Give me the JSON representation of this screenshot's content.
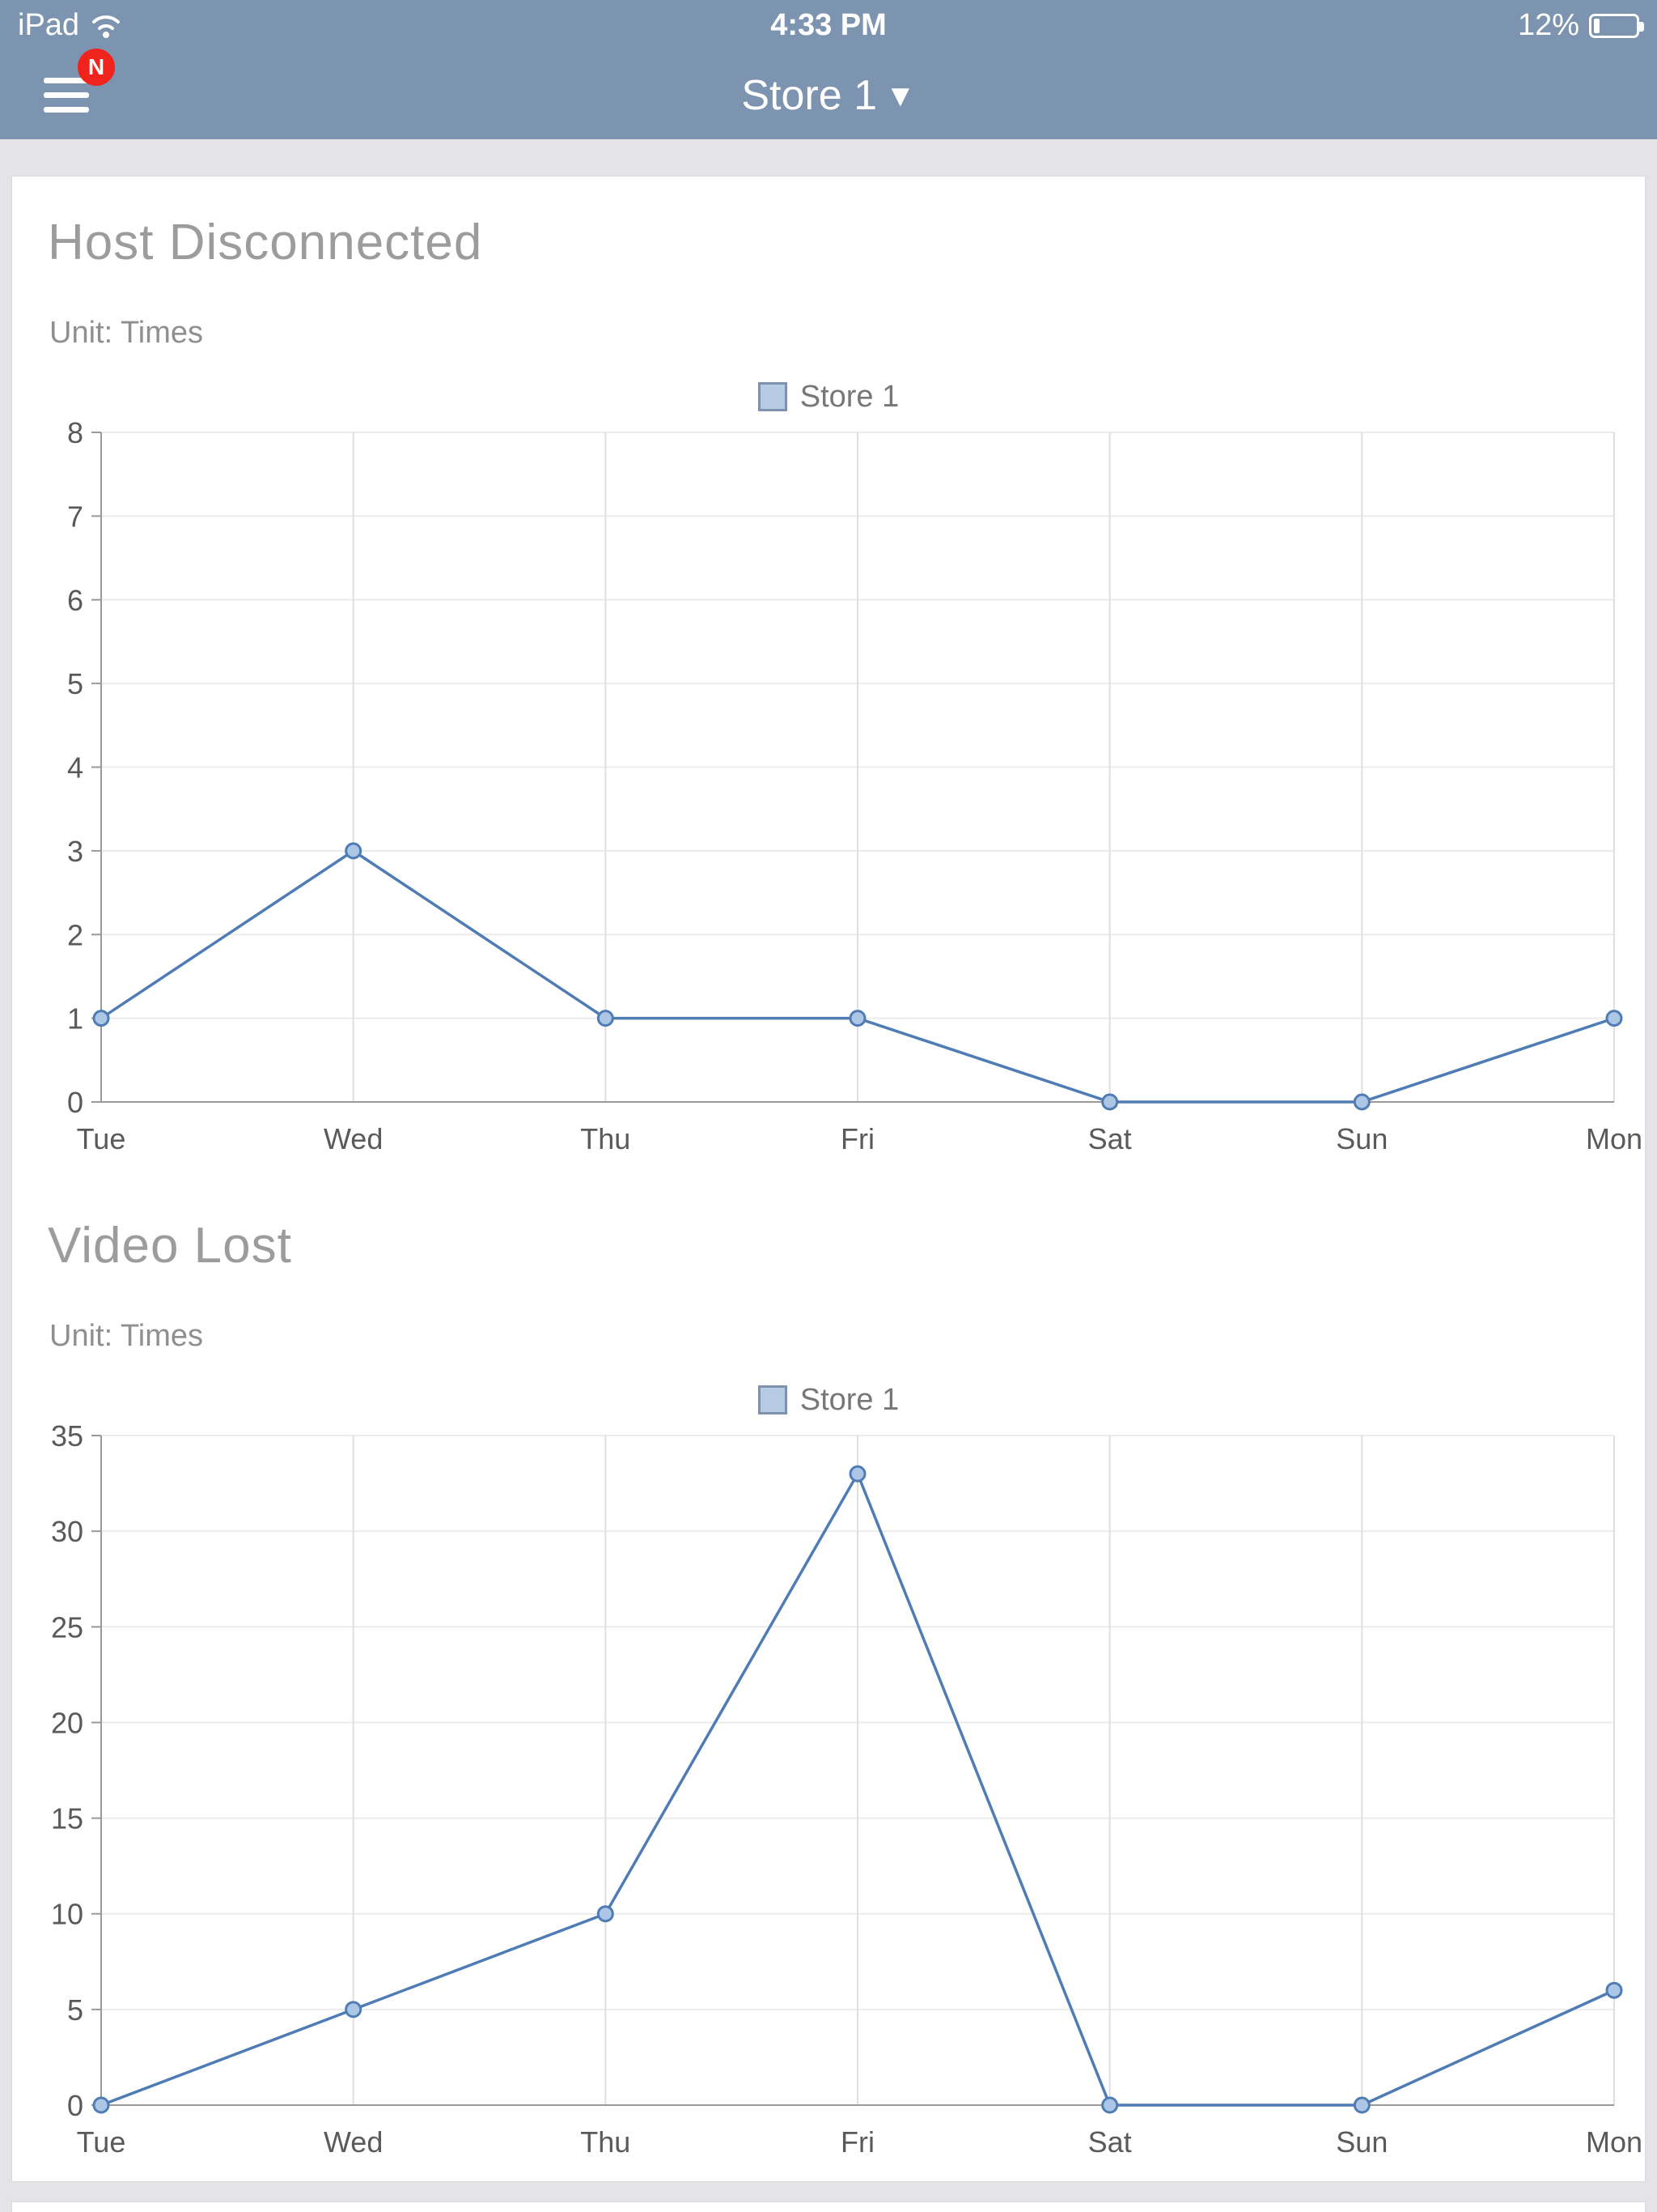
{
  "status_bar": {
    "carrier": "iPad",
    "time": "4:33 PM",
    "battery": "12%"
  },
  "nav": {
    "title": "Store 1",
    "caret": "▼",
    "badge": "N"
  },
  "colors": {
    "header_bg": "#7d94b0",
    "line": "#4f7cb4",
    "marker_fill": "#adc6e6",
    "grid_vertical": "#dfdfdf",
    "grid_horizontal": "#ececec",
    "axis": "#999999",
    "axis_text": "#5a5a5a",
    "title_gray": "#9c9c9c"
  },
  "chart_data": [
    {
      "type": "line",
      "title": "Host Disconnected",
      "unit_label": "Unit: Times",
      "legend": "Store 1",
      "categories": [
        "Tue",
        "Wed",
        "Thu",
        "Fri",
        "Sat",
        "Sun",
        "Mon"
      ],
      "series": [
        {
          "name": "Store 1",
          "values": [
            1,
            3,
            1,
            1,
            0,
            0,
            1
          ]
        }
      ],
      "xlabel": "",
      "ylabel": "",
      "ylim": [
        0,
        8
      ],
      "ytick_step": 1,
      "grid": true,
      "legend_position": "top-center"
    },
    {
      "type": "line",
      "title": "Video Lost",
      "unit_label": "Unit: Times",
      "legend": "Store 1",
      "categories": [
        "Tue",
        "Wed",
        "Thu",
        "Fri",
        "Sat",
        "Sun",
        "Mon"
      ],
      "series": [
        {
          "name": "Store 1",
          "values": [
            0,
            5,
            10,
            33,
            0,
            0,
            6
          ]
        }
      ],
      "xlabel": "",
      "ylabel": "",
      "ylim": [
        0,
        35
      ],
      "ytick_step": 5,
      "grid": true,
      "legend_position": "top-center"
    }
  ]
}
